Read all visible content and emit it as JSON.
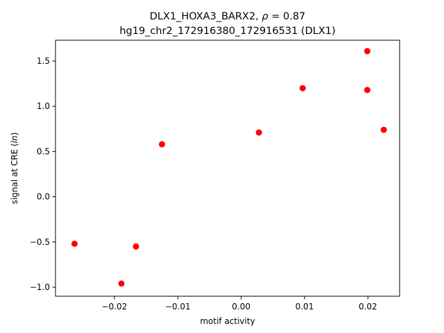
{
  "chart_data": {
    "type": "scatter",
    "title_line1": "DLX1_HOXA3_BARX2, ρ = 0.87",
    "title_line2": "hg19_chr2_172916380_172916531 (DLX1)",
    "xlabel": "motif activity",
    "ylabel": "signal at CRE (ln)",
    "xlim": [
      -0.0293,
      0.025
    ],
    "ylim": [
      -1.1,
      1.73
    ],
    "xticks": [
      -0.02,
      -0.01,
      0.0,
      0.01,
      0.02
    ],
    "xtick_labels": [
      "−0.02",
      "−0.01",
      "0.00",
      "0.01",
      "0.02"
    ],
    "yticks": [
      -1.0,
      -0.5,
      0.0,
      0.5,
      1.0,
      1.5
    ],
    "ytick_labels": [
      "−1.0",
      "−0.5",
      "0.0",
      "0.5",
      "1.0",
      "1.5"
    ],
    "grid": false,
    "point_color": "#ff0000",
    "points": [
      {
        "x": -0.0263,
        "y": -0.52
      },
      {
        "x": -0.0189,
        "y": -0.96
      },
      {
        "x": -0.0166,
        "y": -0.55
      },
      {
        "x": -0.0125,
        "y": 0.58
      },
      {
        "x": 0.0028,
        "y": 0.71
      },
      {
        "x": 0.0097,
        "y": 1.2
      },
      {
        "x": 0.0199,
        "y": 1.61
      },
      {
        "x": 0.0199,
        "y": 1.18
      },
      {
        "x": 0.0225,
        "y": 0.74
      }
    ]
  }
}
